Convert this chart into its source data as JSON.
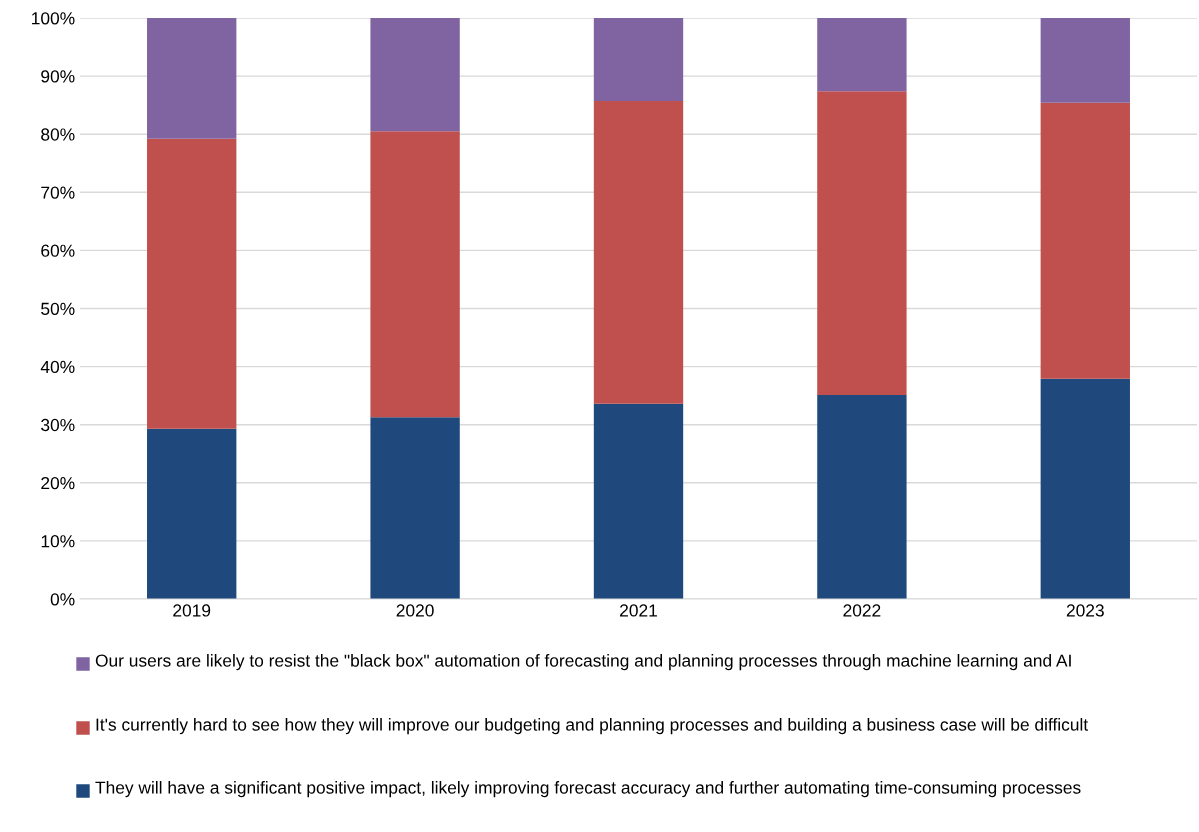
{
  "chart_data": {
    "type": "bar",
    "stacked": true,
    "categories": [
      "2019",
      "2020",
      "2021",
      "2022",
      "2023"
    ],
    "series": [
      {
        "name": "They will have a significant positive impact, likely improving forecast accuracy and further automating time-consuming processes",
        "color": "#1f497d",
        "values": [
          29.3,
          31.3,
          33.6,
          35.1,
          37.9
        ]
      },
      {
        "name": "It's currently hard to see how they will improve our budgeting and planning processes and building a business case will be difficult",
        "color": "#c0504d",
        "values": [
          49.9,
          49.2,
          52.1,
          52.3,
          47.5
        ]
      },
      {
        "name": "Our users are likely to resist the \"black box\" automation of forecasting and planning processes through machine learning and AI",
        "color": "#8064a2",
        "values": [
          20.8,
          19.5,
          14.3,
          12.6,
          14.6
        ]
      }
    ],
    "ylim": [
      0,
      100
    ],
    "yticks": [
      {
        "value": 0,
        "label": "0%"
      },
      {
        "value": 10,
        "label": "10%"
      },
      {
        "value": 20,
        "label": "20%"
      },
      {
        "value": 30,
        "label": "30%"
      },
      {
        "value": 40,
        "label": "40%"
      },
      {
        "value": 50,
        "label": "50%"
      },
      {
        "value": 60,
        "label": "60%"
      },
      {
        "value": 70,
        "label": "70%"
      },
      {
        "value": 80,
        "label": "80%"
      },
      {
        "value": 90,
        "label": "90%"
      },
      {
        "value": 100,
        "label": "100%"
      }
    ],
    "grid": "y",
    "legend": "bottom"
  }
}
